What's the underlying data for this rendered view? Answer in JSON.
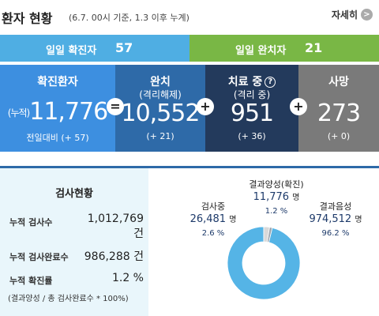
{
  "header": {
    "title": "환자 현황",
    "subtitle": "(6.7. 00시 기준, 1.3 이후 누계)",
    "more_label": "자세히",
    "more_icon": "chevron-right-icon"
  },
  "daily": {
    "confirmed_label": "일일 확진자",
    "confirmed_value": "57",
    "released_label": "일일 완치자",
    "released_value": "21"
  },
  "stats": {
    "confirmed": {
      "title": "확진환자",
      "prefix": "(누적)",
      "value": "11,776",
      "delta": "전일대비 (+ 57)"
    },
    "released": {
      "title": "완치",
      "subtitle": "(격리해제)",
      "value": "10,552",
      "delta": "(+ 21)"
    },
    "treating": {
      "title": "치료 중",
      "subtitle": "(격리 중)",
      "value": "951",
      "delta": "(+ 36)"
    },
    "deaths": {
      "title": "사망",
      "value": "273",
      "delta": "(+ 0)"
    },
    "operators": {
      "equals": "=",
      "plus1": "+",
      "plus2": "+",
      "plus3": "+"
    },
    "help_icon": "?"
  },
  "tests": {
    "title": "검사현황",
    "rows": [
      {
        "label": "누적 검사수",
        "value": "1,012,769",
        "unit": "건"
      },
      {
        "label": "누적 검사완료수",
        "value": "986,288",
        "unit": "건"
      },
      {
        "label": "누적 확진률",
        "value": "1.2 %"
      }
    ],
    "note": "(결과양성 / 총 검사완료수 * 100%)"
  },
  "donut": {
    "positive": {
      "label": "결과양성(확진)",
      "value": "11,776",
      "unit": "명",
      "percent": "1.2 %"
    },
    "testing": {
      "label": "검사중",
      "value": "26,481",
      "unit": "명",
      "percent": "2.6 %"
    },
    "negative": {
      "label": "결과음성",
      "value": "974,512",
      "unit": "명",
      "percent": "96.2 %"
    },
    "colors": {
      "negative": "#55b4e6",
      "testing": "#d9d9d9",
      "positive": "#9ea7b1"
    },
    "shares": {
      "negative": 96.2,
      "testing": 2.6,
      "positive": 1.2
    }
  }
}
